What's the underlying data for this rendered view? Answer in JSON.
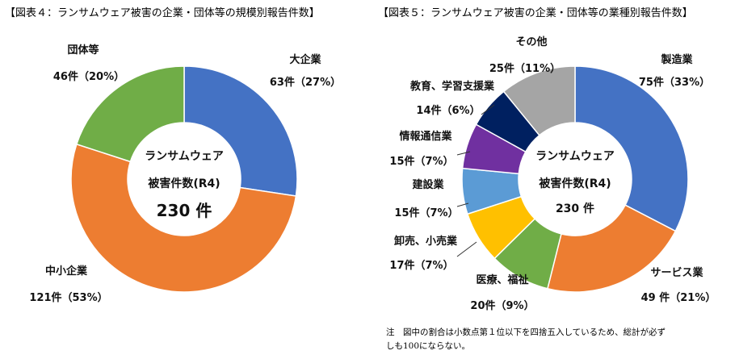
{
  "chart_data": [
    {
      "type": "pie",
      "title": "【図表４：ランサムウェア被害の企業・団体等の規模別報告件数】",
      "center_text": [
        "ランサムウェア",
        "被害件数(R4)",
        "230 件"
      ],
      "slices": [
        {
          "name": "大企業",
          "value": 63,
          "label": "63件（27%）",
          "color": "#4472C4"
        },
        {
          "name": "中小企業",
          "value": 121,
          "label": "121件（53%）",
          "color": "#ED7D31"
        },
        {
          "name": "団体等",
          "value": 46,
          "label": "46件（20%）",
          "color": "#70AD47"
        }
      ]
    },
    {
      "type": "pie",
      "title": "【図表５：ランサムウェア被害の企業・団体等の業種別報告件数】",
      "center_text": [
        "ランサムウェア",
        "被害件数(R4)",
        "230 件"
      ],
      "slices": [
        {
          "name": "製造業",
          "value": 75,
          "label": "75件（33%）",
          "color": "#4472C4"
        },
        {
          "name": "サービス業",
          "value": 49,
          "label": "49 件（21%）",
          "color": "#ED7D31"
        },
        {
          "name": "医療、福祉",
          "value": 20,
          "label": "20件（9%）",
          "color": "#70AD47"
        },
        {
          "name": "卸売、小売業",
          "value": 17,
          "label": "17件（7%）",
          "color": "#FFC000"
        },
        {
          "name": "建設業",
          "value": 15,
          "label": "15件（7%）",
          "color": "#5B9BD5"
        },
        {
          "name": "情報通信業",
          "value": 15,
          "label": "15件（7%）",
          "color": "#7030A0"
        },
        {
          "name": "教育、学習支援業",
          "value": 14,
          "label": "14件（6%）",
          "color": "#002060"
        },
        {
          "name": "その他",
          "value": 25,
          "label": "25件（11%）",
          "color": "#A5A5A5"
        }
      ],
      "note": [
        "注　図中の割合は小数点第１位以下を四捨五入しているため、総計が必ず",
        "しも100にならない。"
      ]
    }
  ]
}
